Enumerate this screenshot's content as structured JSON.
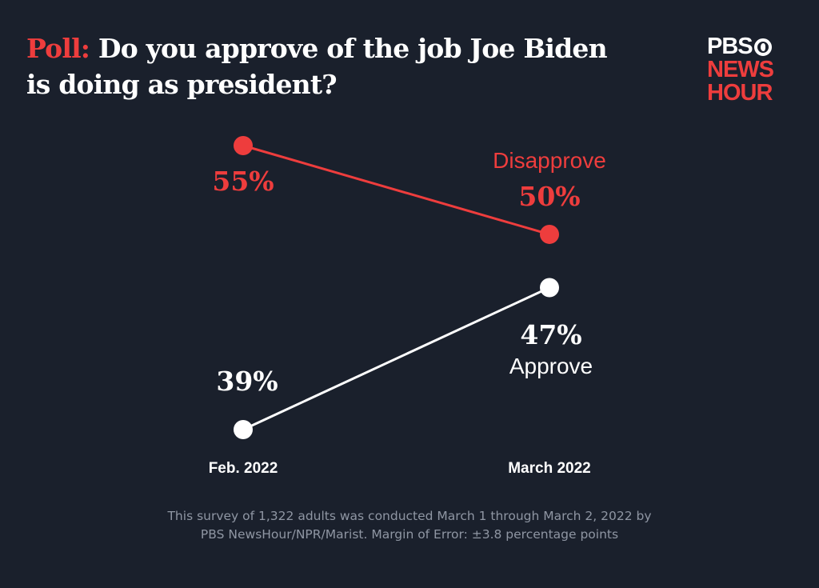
{
  "header": {
    "title_prefix": "Poll:",
    "title_line1": "Do you approve of the job Joe Biden",
    "title_line2": "is doing as president?"
  },
  "logo": {
    "line1": "PBS",
    "line2": "NEWS",
    "line3": "HOUR"
  },
  "colors": {
    "background": "#1a202c",
    "disapprove": "#ee3d3d",
    "approve": "#ffffff",
    "footnote": "#8f96a3"
  },
  "chart_data": {
    "type": "line",
    "title": "Do you approve of the job Joe Biden is doing as president?",
    "categories": [
      "Feb. 2022",
      "March 2022"
    ],
    "ylim": [
      35,
      60
    ],
    "series": [
      {
        "name": "Disapprove",
        "values": [
          55,
          50
        ],
        "labels": [
          "55%",
          "50%"
        ],
        "color": "#ee3d3d"
      },
      {
        "name": "Approve",
        "values": [
          39,
          47
        ],
        "labels": [
          "39%",
          "47%"
        ],
        "color": "#ffffff"
      }
    ]
  },
  "footnote": {
    "line1": "This survey of 1,322 adults was conducted March 1 through March 2, 2022 by",
    "line2": "PBS NewsHour/NPR/Marist. Margin of Error: ±3.8 percentage points"
  }
}
